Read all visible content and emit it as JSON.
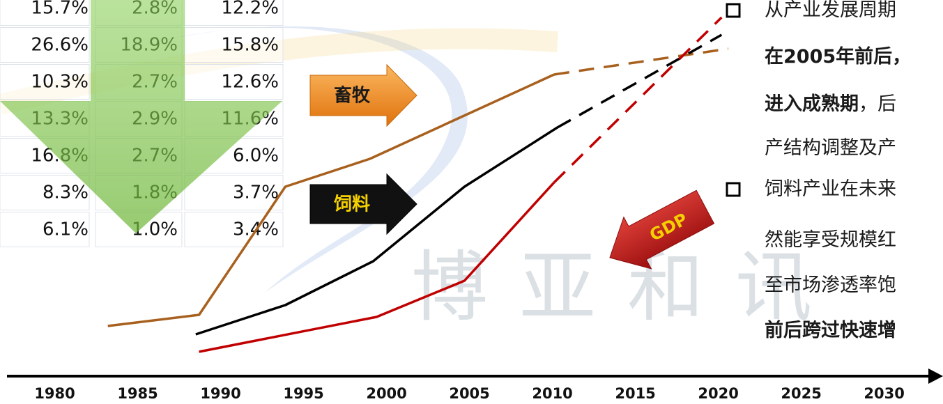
{
  "chart_data": {
    "type": "line",
    "xlim": [
      1976.7,
      2033
    ],
    "ylim": [
      0,
      100
    ],
    "xticks": [
      1980,
      1985,
      1990,
      1995,
      2000,
      2005,
      2010,
      2015,
      2020,
      2025,
      2030
    ],
    "series": [
      {
        "name": "畜牧",
        "color": "#a8601e",
        "x": [
          1977.8,
          1983.2,
          1988.7,
          1993.9,
          1999.0,
          2004.5,
          2010.1
        ],
        "values": [
          0,
          9.4,
          12.6,
          49.4,
          57.4,
          69.4,
          81.6
        ],
        "projected_x": 2020.6,
        "projected": 89
      },
      {
        "name": "饲料",
        "color": "#000000",
        "x": [
          1977.8,
          1988.5,
          1993.9,
          1999.2,
          2004.7,
          2010.3
        ],
        "values": [
          0,
          7,
          15.4,
          28,
          49.4,
          66.4
        ],
        "projected_x": 2020.2,
        "projected": 93
      },
      {
        "name": "GDP",
        "color": "#c00000",
        "x": [
          1977.8,
          1988.7,
          1999.4,
          2004.7,
          2010.1
        ],
        "values": [
          0,
          2,
          12,
          22.4,
          50.6
        ],
        "projected_x": 2020.2,
        "projected": 98
      }
    ]
  },
  "table": {
    "rows": [
      [
        "15.7%",
        "2.8%",
        "12.2%"
      ],
      [
        "26.6%",
        "18.9%",
        "15.8%"
      ],
      [
        "10.3%",
        "2.7%",
        "12.6%"
      ],
      [
        "13.3%",
        "2.9%",
        "11.6%"
      ],
      [
        "16.8%",
        "2.7%",
        "6.0%"
      ],
      [
        "8.3%",
        "1.8%",
        "3.7%"
      ],
      [
        "6.1%",
        "1.0%",
        "3.4%"
      ]
    ]
  },
  "watermark": "博亚和讯",
  "notes": [
    {
      "lines": [
        [
          {
            "text": "从产业发展周期",
            "bold": false
          }
        ],
        [
          {
            "text": "在2005年前后，",
            "bold": true
          }
        ],
        [
          {
            "text": "进入成熟期",
            "bold": true
          },
          {
            "text": "，后",
            "bold": false
          }
        ],
        [
          {
            "text": "产结构调整及产",
            "bold": false
          }
        ]
      ]
    },
    {
      "lines": [
        [
          {
            "text": "饲料产业在未来",
            "bold": false
          }
        ],
        [
          {
            "text": "然能享受规模红",
            "bold": false
          }
        ],
        [
          {
            "text": "至市场渗透率饱",
            "bold": false
          }
        ],
        [
          {
            "text": "前后跨过快速增",
            "bold": true
          }
        ]
      ]
    }
  ]
}
